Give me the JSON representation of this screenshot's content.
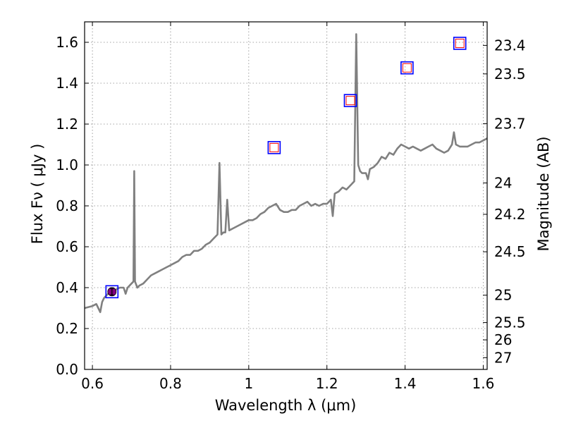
{
  "chart_data": {
    "type": "line",
    "xlabel": "Wavelength  λ (μm)",
    "ylabel": "Flux  Fν  ( μJy )",
    "y2label": "Magnitude (AB)",
    "xlim": [
      0.58,
      1.61
    ],
    "ylim": [
      0.0,
      1.7
    ],
    "grid": true,
    "x_ticks": [
      {
        "value": 0.6,
        "label": "0.6"
      },
      {
        "value": 0.8,
        "label": "0.8"
      },
      {
        "value": 1.0,
        "label": "1"
      },
      {
        "value": 1.2,
        "label": "1.2"
      },
      {
        "value": 1.4,
        "label": "1.4"
      },
      {
        "value": 1.6,
        "label": "1.6"
      }
    ],
    "y_ticks": [
      {
        "value": 0.0,
        "label": "0.0"
      },
      {
        "value": 0.2,
        "label": "0.2"
      },
      {
        "value": 0.4,
        "label": "0.4"
      },
      {
        "value": 0.6,
        "label": "0.6"
      },
      {
        "value": 0.8,
        "label": "0.8"
      },
      {
        "value": 1.0,
        "label": "1.0"
      },
      {
        "value": 1.2,
        "label": "1.2"
      },
      {
        "value": 1.4,
        "label": "1.4"
      },
      {
        "value": 1.6,
        "label": "1.6"
      }
    ],
    "y2_ticks": [
      {
        "value": 23.4,
        "label": "23.4"
      },
      {
        "value": 23.5,
        "label": "23.5"
      },
      {
        "value": 23.7,
        "label": "23.7"
      },
      {
        "value": 24.0,
        "label": "24"
      },
      {
        "value": 24.2,
        "label": "24.2"
      },
      {
        "value": 24.5,
        "label": "24.5"
      },
      {
        "value": 25.0,
        "label": "25"
      },
      {
        "value": 25.5,
        "label": "25.5"
      },
      {
        "value": 26.0,
        "label": "26"
      },
      {
        "value": 27.0,
        "label": "27"
      }
    ],
    "spectrum": {
      "color": "#808080",
      "points": [
        [
          0.58,
          0.3
        ],
        [
          0.6,
          0.31
        ],
        [
          0.61,
          0.32
        ],
        [
          0.615,
          0.3
        ],
        [
          0.62,
          0.28
        ],
        [
          0.625,
          0.33
        ],
        [
          0.63,
          0.35
        ],
        [
          0.64,
          0.37
        ],
        [
          0.65,
          0.38
        ],
        [
          0.66,
          0.39
        ],
        [
          0.67,
          0.4
        ],
        [
          0.68,
          0.4
        ],
        [
          0.685,
          0.37
        ],
        [
          0.69,
          0.4
        ],
        [
          0.7,
          0.42
        ],
        [
          0.705,
          0.43
        ],
        [
          0.707,
          0.97
        ],
        [
          0.709,
          0.43
        ],
        [
          0.715,
          0.4
        ],
        [
          0.72,
          0.41
        ],
        [
          0.73,
          0.42
        ],
        [
          0.74,
          0.44
        ],
        [
          0.75,
          0.46
        ],
        [
          0.76,
          0.47
        ],
        [
          0.77,
          0.48
        ],
        [
          0.78,
          0.49
        ],
        [
          0.79,
          0.5
        ],
        [
          0.8,
          0.51
        ],
        [
          0.81,
          0.52
        ],
        [
          0.82,
          0.53
        ],
        [
          0.83,
          0.55
        ],
        [
          0.84,
          0.56
        ],
        [
          0.85,
          0.56
        ],
        [
          0.86,
          0.58
        ],
        [
          0.87,
          0.58
        ],
        [
          0.88,
          0.59
        ],
        [
          0.89,
          0.61
        ],
        [
          0.9,
          0.62
        ],
        [
          0.91,
          0.64
        ],
        [
          0.92,
          0.66
        ],
        [
          0.925,
          1.01
        ],
        [
          0.93,
          0.66
        ],
        [
          0.935,
          0.67
        ],
        [
          0.94,
          0.67
        ],
        [
          0.945,
          0.83
        ],
        [
          0.95,
          0.68
        ],
        [
          0.96,
          0.69
        ],
        [
          0.97,
          0.7
        ],
        [
          0.98,
          0.71
        ],
        [
          0.99,
          0.72
        ],
        [
          1.0,
          0.73
        ],
        [
          1.01,
          0.73
        ],
        [
          1.02,
          0.74
        ],
        [
          1.03,
          0.76
        ],
        [
          1.04,
          0.77
        ],
        [
          1.05,
          0.79
        ],
        [
          1.06,
          0.8
        ],
        [
          1.07,
          0.81
        ],
        [
          1.08,
          0.78
        ],
        [
          1.09,
          0.77
        ],
        [
          1.1,
          0.77
        ],
        [
          1.11,
          0.78
        ],
        [
          1.12,
          0.78
        ],
        [
          1.13,
          0.8
        ],
        [
          1.14,
          0.81
        ],
        [
          1.15,
          0.82
        ],
        [
          1.16,
          0.8
        ],
        [
          1.17,
          0.81
        ],
        [
          1.18,
          0.8
        ],
        [
          1.19,
          0.81
        ],
        [
          1.2,
          0.81
        ],
        [
          1.21,
          0.83
        ],
        [
          1.215,
          0.75
        ],
        [
          1.22,
          0.86
        ],
        [
          1.23,
          0.87
        ],
        [
          1.24,
          0.89
        ],
        [
          1.25,
          0.88
        ],
        [
          1.26,
          0.9
        ],
        [
          1.27,
          0.92
        ],
        [
          1.275,
          1.64
        ],
        [
          1.28,
          1.0
        ],
        [
          1.285,
          0.97
        ],
        [
          1.29,
          0.96
        ],
        [
          1.3,
          0.96
        ],
        [
          1.305,
          0.93
        ],
        [
          1.31,
          0.98
        ],
        [
          1.32,
          0.99
        ],
        [
          1.33,
          1.01
        ],
        [
          1.34,
          1.04
        ],
        [
          1.35,
          1.03
        ],
        [
          1.36,
          1.06
        ],
        [
          1.37,
          1.05
        ],
        [
          1.38,
          1.08
        ],
        [
          1.39,
          1.1
        ],
        [
          1.4,
          1.09
        ],
        [
          1.41,
          1.08
        ],
        [
          1.42,
          1.09
        ],
        [
          1.43,
          1.08
        ],
        [
          1.44,
          1.07
        ],
        [
          1.45,
          1.08
        ],
        [
          1.46,
          1.09
        ],
        [
          1.47,
          1.1
        ],
        [
          1.48,
          1.08
        ],
        [
          1.49,
          1.07
        ],
        [
          1.5,
          1.06
        ],
        [
          1.51,
          1.07
        ],
        [
          1.52,
          1.1
        ],
        [
          1.525,
          1.16
        ],
        [
          1.53,
          1.1
        ],
        [
          1.54,
          1.09
        ],
        [
          1.55,
          1.09
        ],
        [
          1.56,
          1.09
        ],
        [
          1.57,
          1.1
        ],
        [
          1.58,
          1.11
        ],
        [
          1.59,
          1.11
        ],
        [
          1.6,
          1.12
        ],
        [
          1.61,
          1.13
        ]
      ]
    },
    "photometry": [
      {
        "x": 0.65,
        "y": 0.38,
        "filled": true
      },
      {
        "x": 1.065,
        "y": 1.085,
        "filled": false
      },
      {
        "x": 1.26,
        "y": 1.315,
        "filled": false
      },
      {
        "x": 1.405,
        "y": 1.475,
        "filled": false
      },
      {
        "x": 1.54,
        "y": 1.595,
        "filled": false
      }
    ],
    "marker_outer_color": "#0000ff",
    "marker_inner_color": "#ff0000",
    "filled_marker_color": "#800080",
    "grid_color": "#888888"
  }
}
